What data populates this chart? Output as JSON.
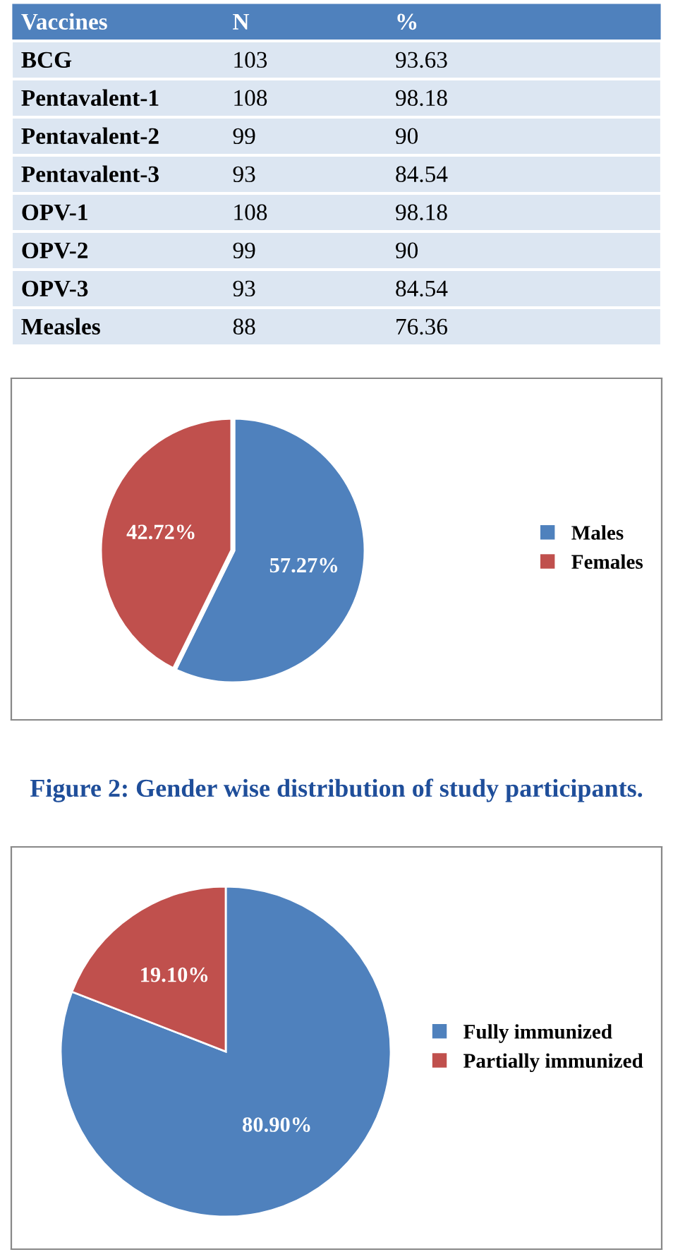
{
  "chart_data": [
    {
      "type": "other",
      "ylabel": "Vaccines",
      "categories": [
        "BCG",
        "Pentavalent-1",
        "Pentavalent-2",
        "Pentavalent-3",
        "OPV-1",
        "OPV-2",
        "OPV-3",
        "Measles"
      ],
      "series": [
        {
          "name": "N",
          "values": [
            103,
            108,
            99,
            93,
            108,
            99,
            93,
            88
          ]
        },
        {
          "name": "%",
          "values": [
            93.63,
            98.18,
            90,
            84.54,
            98.18,
            90,
            84.54,
            76.36
          ]
        }
      ],
      "data_labels": true
    },
    {
      "type": "pie",
      "categories": [
        "Males",
        "Females"
      ],
      "values": [
        57.27,
        42.72
      ],
      "value_labels": [
        "57.27%",
        "42.72%"
      ],
      "colors": [
        "#4f81bd",
        "#c0504d"
      ],
      "legend": "right",
      "annotations": [
        "Figure 2: Gender wise distribution of study participants."
      ]
    },
    {
      "type": "pie",
      "categories": [
        "Fully immunized",
        "Partially immunized"
      ],
      "values": [
        80.9,
        19.1
      ],
      "value_labels": [
        "80.90%",
        "19.10%"
      ],
      "colors": [
        "#4f81bd",
        "#c0504d"
      ],
      "legend": "right"
    }
  ]
}
